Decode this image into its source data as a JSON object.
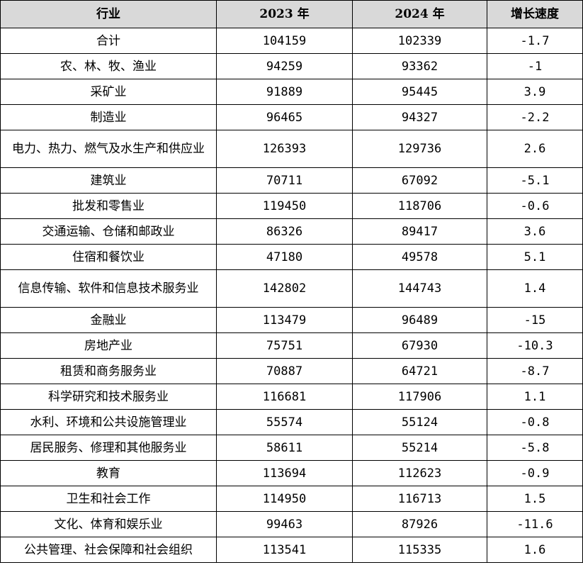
{
  "headers": [
    "行业",
    "2023 年",
    "2024 年",
    "增长速度"
  ],
  "rows": [
    {
      "industry": "合计",
      "y2023": "104159",
      "y2024": "102339",
      "growth": "-1.7"
    },
    {
      "industry": "农、林、牧、渔业",
      "y2023": "94259",
      "y2024": "93362",
      "growth": "-1"
    },
    {
      "industry": "采矿业",
      "y2023": "91889",
      "y2024": "95445",
      "growth": "3.9"
    },
    {
      "industry": "制造业",
      "y2023": "96465",
      "y2024": "94327",
      "growth": "-2.2"
    },
    {
      "industry": "电力、热力、燃气及水生产和供应业",
      "y2023": "126393",
      "y2024": "129736",
      "growth": "2.6"
    },
    {
      "industry": "建筑业",
      "y2023": "70711",
      "y2024": "67092",
      "growth": "-5.1"
    },
    {
      "industry": "批发和零售业",
      "y2023": "119450",
      "y2024": "118706",
      "growth": "-0.6"
    },
    {
      "industry": "交通运输、仓储和邮政业",
      "y2023": "86326",
      "y2024": "89417",
      "growth": "3.6"
    },
    {
      "industry": "住宿和餐饮业",
      "y2023": "47180",
      "y2024": "49578",
      "growth": "5.1"
    },
    {
      "industry": "信息传输、软件和信息技术服务业",
      "y2023": "142802",
      "y2024": "144743",
      "growth": "1.4"
    },
    {
      "industry": "金融业",
      "y2023": "113479",
      "y2024": "96489",
      "growth": "-15"
    },
    {
      "industry": "房地产业",
      "y2023": "75751",
      "y2024": "67930",
      "growth": "-10.3"
    },
    {
      "industry": "租赁和商务服务业",
      "y2023": "70887",
      "y2024": "64721",
      "growth": "-8.7"
    },
    {
      "industry": "科学研究和技术服务业",
      "y2023": "116681",
      "y2024": "117906",
      "growth": "1.1"
    },
    {
      "industry": "水利、环境和公共设施管理业",
      "y2023": "55574",
      "y2024": "55124",
      "growth": "-0.8"
    },
    {
      "industry": "居民服务、修理和其他服务业",
      "y2023": "58611",
      "y2024": "55214",
      "growth": "-5.8"
    },
    {
      "industry": "教育",
      "y2023": "113694",
      "y2024": "112623",
      "growth": "-0.9"
    },
    {
      "industry": "卫生和社会工作",
      "y2023": "114950",
      "y2024": "116713",
      "growth": "1.5"
    },
    {
      "industry": "文化、体育和娱乐业",
      "y2023": "99463",
      "y2024": "87926",
      "growth": "-11.6"
    },
    {
      "industry": "公共管理、社会保障和社会组织",
      "y2023": "113541",
      "y2024": "115335",
      "growth": "1.6"
    }
  ]
}
